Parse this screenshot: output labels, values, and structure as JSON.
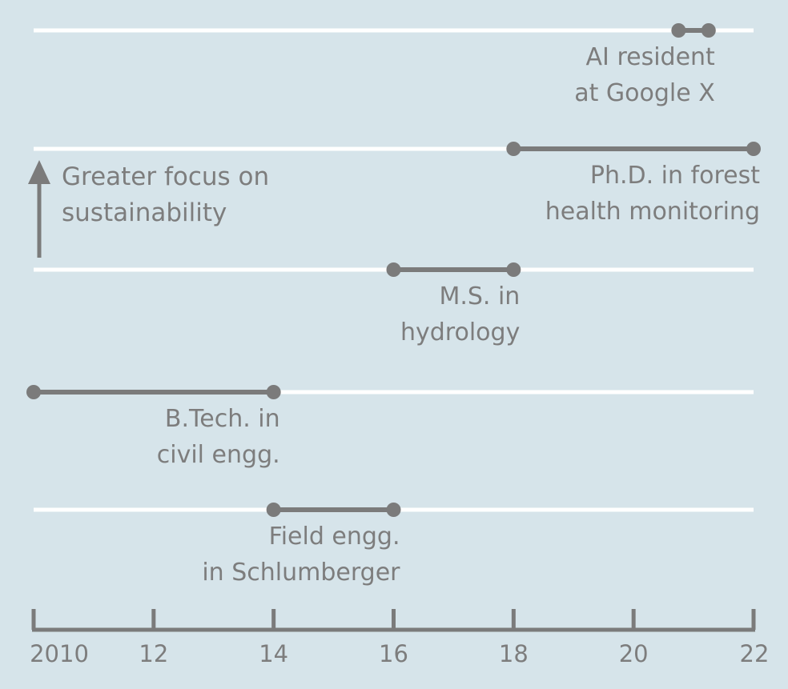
{
  "chart_data": {
    "type": "timeline",
    "x_axis": {
      "range": [
        2010,
        2022
      ],
      "ticks": [
        {
          "value": 2010,
          "label": "2010"
        },
        {
          "value": 2012,
          "label": "12"
        },
        {
          "value": 2014,
          "label": "14"
        },
        {
          "value": 2016,
          "label": "16"
        },
        {
          "value": 2018,
          "label": "18"
        },
        {
          "value": 2020,
          "label": "20"
        },
        {
          "value": 2022,
          "label": "22"
        }
      ]
    },
    "y_annotation": "Greater focus on sustainability",
    "lanes": [
      {
        "label_lines": [
          "AI resident",
          "at Google X"
        ],
        "start": 2020.75,
        "end": 2021.25
      },
      {
        "label_lines": [
          "Ph.D. in forest",
          "health monitoring"
        ],
        "start": 2018,
        "end": 2022
      },
      {
        "label_lines": [
          "M.S. in",
          "hydrology"
        ],
        "start": 2016,
        "end": 2018
      },
      {
        "label_lines": [
          "B.Tech. in",
          "civil engg."
        ],
        "start": 2010,
        "end": 2014
      },
      {
        "label_lines": [
          "Field engg.",
          "in Schlumberger"
        ],
        "start": 2014,
        "end": 2016
      }
    ],
    "colors": {
      "background": "#d6e4ea",
      "lane_line": "#ffffff",
      "mark": "#7b7b7b",
      "text": "#7d7d7d"
    }
  }
}
